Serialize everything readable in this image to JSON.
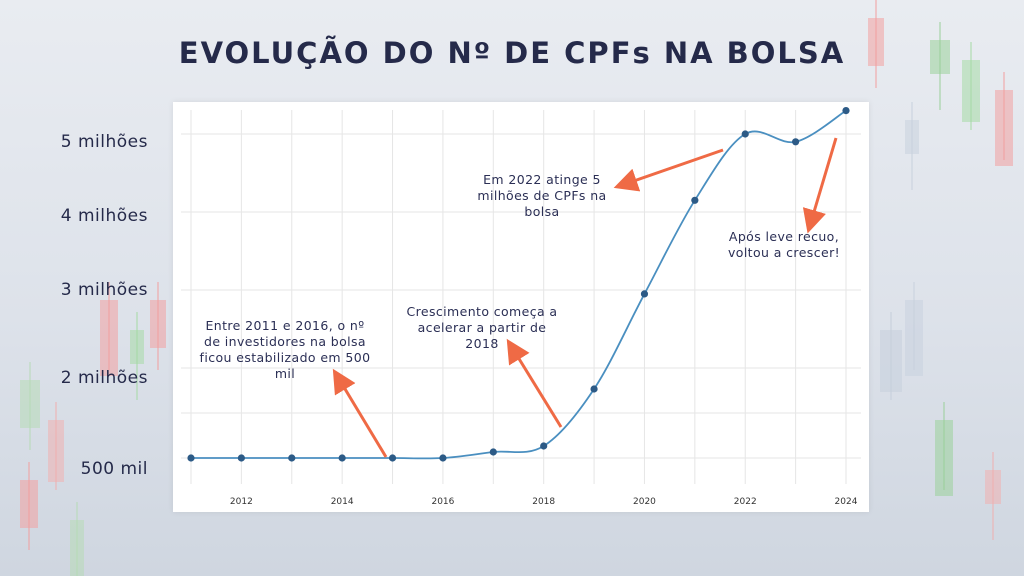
{
  "title": "EVOLUÇÃO DO Nº DE CPFs NA BOLSA",
  "y_tick_labels": [
    "5 milhões",
    "4 milhões",
    "3 milhões",
    "2 milhões",
    "500 mil"
  ],
  "annotations": {
    "a2011": "Entre 2011 e 2016, o nº de investidores na bolsa ficou estabilizado em 500 mil",
    "a2018": "Crescimento começa a acelerar a partir de 2018",
    "a2022": "Em 2022 atinge 5 milhões de CPFs na bolsa",
    "a2023": "Após leve recuo, voltou a crescer!"
  },
  "colors": {
    "title": "#252a4a",
    "line": "#4a8fc0",
    "point": "#2c5a86",
    "arrow": "#ef6a45",
    "grid": "#e6e6e6"
  },
  "chart_data": {
    "type": "line",
    "title": "EVOLUÇÃO DO Nº DE CPFs NA BOLSA",
    "xlabel": "",
    "ylabel": "",
    "x": [
      2011,
      2012,
      2013,
      2014,
      2015,
      2016,
      2017,
      2018,
      2019,
      2020,
      2021,
      2022,
      2023,
      2024
    ],
    "x_tick_labels": [
      "2012",
      "2014",
      "2016",
      "2018",
      "2020",
      "2022",
      "2024"
    ],
    "x_ticks": [
      2012,
      2014,
      2016,
      2018,
      2020,
      2022,
      2024
    ],
    "series": [
      {
        "values": [
          500000,
          500000,
          500000,
          500000,
          500000,
          500000,
          600000,
          700000,
          1650000,
          2950000,
          4150000,
          5000000,
          4900000,
          5300000
        ]
      }
    ],
    "y_ticks": [
      5000000,
      4000000,
      3000000,
      2000000,
      500000
    ],
    "y_tick_labels": [
      "5 milhões",
      "4 milhões",
      "3 milhões",
      "2 milhões",
      "500 mil"
    ],
    "grid": true,
    "legend": "none"
  }
}
